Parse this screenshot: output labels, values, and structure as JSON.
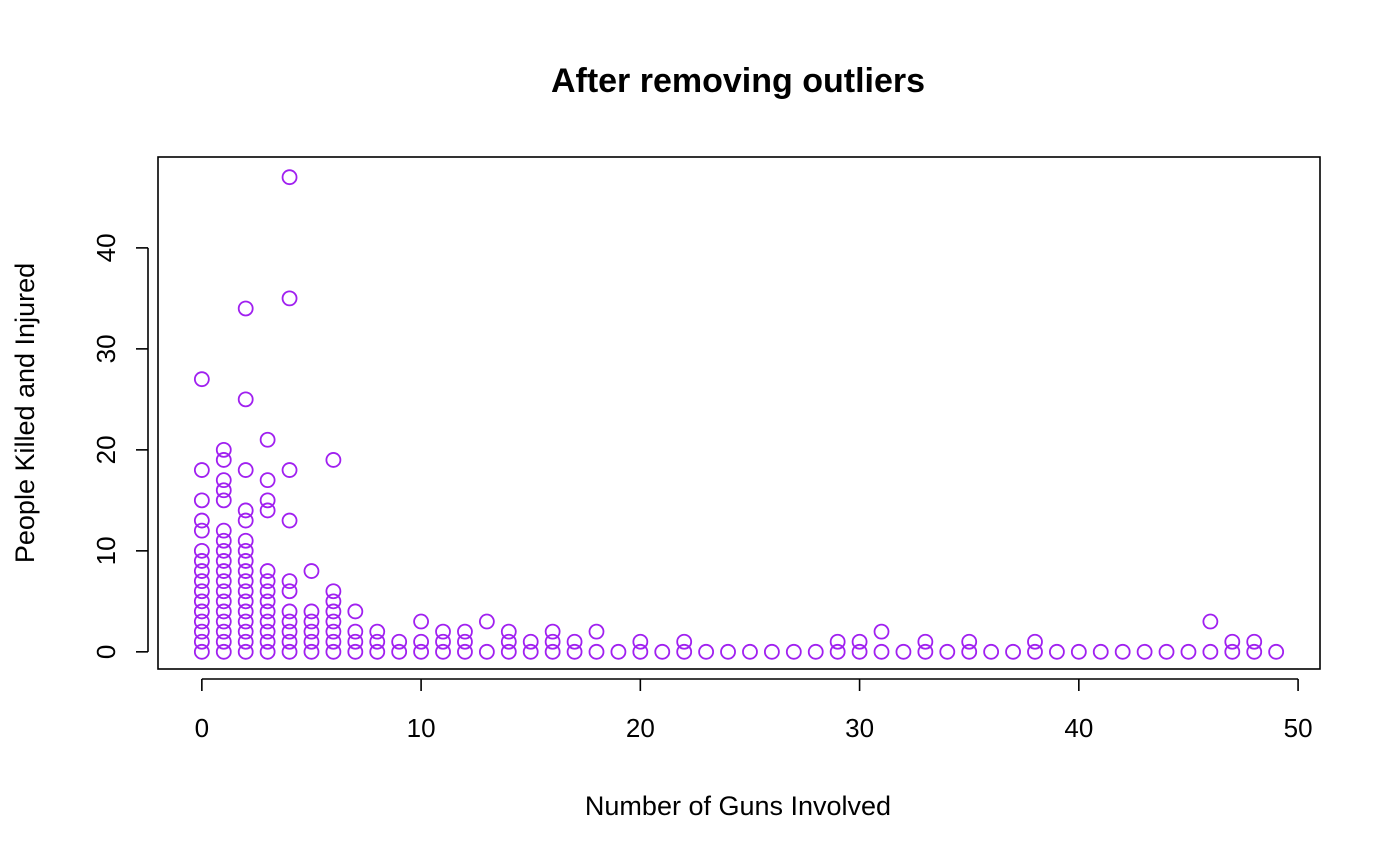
{
  "chart_data": {
    "type": "scatter",
    "title": "After removing outliers",
    "xlabel": "Number of Guns Involved",
    "ylabel": "People Killed and Injured",
    "xlim": [
      -2,
      51
    ],
    "ylim": [
      -1.7,
      49
    ],
    "xticks": [
      0,
      10,
      20,
      30,
      40,
      50
    ],
    "yticks": [
      0,
      10,
      20,
      30,
      40
    ],
    "marker": "open-circle",
    "point_color": "#A020F0",
    "grid": false,
    "legend": "none",
    "points": [
      [
        0,
        0
      ],
      [
        0,
        1
      ],
      [
        0,
        2
      ],
      [
        0,
        3
      ],
      [
        0,
        4
      ],
      [
        0,
        5
      ],
      [
        0,
        6
      ],
      [
        0,
        7
      ],
      [
        0,
        8
      ],
      [
        0,
        9
      ],
      [
        0,
        10
      ],
      [
        0,
        12
      ],
      [
        0,
        13
      ],
      [
        0,
        15
      ],
      [
        0,
        18
      ],
      [
        0,
        27
      ],
      [
        1,
        0
      ],
      [
        1,
        1
      ],
      [
        1,
        2
      ],
      [
        1,
        3
      ],
      [
        1,
        4
      ],
      [
        1,
        5
      ],
      [
        1,
        6
      ],
      [
        1,
        7
      ],
      [
        1,
        8
      ],
      [
        1,
        9
      ],
      [
        1,
        10
      ],
      [
        1,
        11
      ],
      [
        1,
        12
      ],
      [
        1,
        15
      ],
      [
        1,
        16
      ],
      [
        1,
        17
      ],
      [
        1,
        19
      ],
      [
        1,
        20
      ],
      [
        2,
        0
      ],
      [
        2,
        1
      ],
      [
        2,
        2
      ],
      [
        2,
        3
      ],
      [
        2,
        4
      ],
      [
        2,
        5
      ],
      [
        2,
        6
      ],
      [
        2,
        7
      ],
      [
        2,
        8
      ],
      [
        2,
        9
      ],
      [
        2,
        10
      ],
      [
        2,
        11
      ],
      [
        2,
        13
      ],
      [
        2,
        14
      ],
      [
        2,
        18
      ],
      [
        2,
        25
      ],
      [
        2,
        34
      ],
      [
        3,
        0
      ],
      [
        3,
        1
      ],
      [
        3,
        2
      ],
      [
        3,
        3
      ],
      [
        3,
        4
      ],
      [
        3,
        5
      ],
      [
        3,
        6
      ],
      [
        3,
        7
      ],
      [
        3,
        8
      ],
      [
        3,
        14
      ],
      [
        3,
        15
      ],
      [
        3,
        17
      ],
      [
        3,
        21
      ],
      [
        4,
        0
      ],
      [
        4,
        1
      ],
      [
        4,
        2
      ],
      [
        4,
        3
      ],
      [
        4,
        4
      ],
      [
        4,
        6
      ],
      [
        4,
        7
      ],
      [
        4,
        13
      ],
      [
        4,
        18
      ],
      [
        4,
        35
      ],
      [
        4,
        47
      ],
      [
        5,
        0
      ],
      [
        5,
        1
      ],
      [
        5,
        2
      ],
      [
        5,
        3
      ],
      [
        5,
        4
      ],
      [
        5,
        8
      ],
      [
        6,
        0
      ],
      [
        6,
        1
      ],
      [
        6,
        2
      ],
      [
        6,
        3
      ],
      [
        6,
        4
      ],
      [
        6,
        5
      ],
      [
        6,
        6
      ],
      [
        6,
        19
      ],
      [
        7,
        0
      ],
      [
        7,
        1
      ],
      [
        7,
        2
      ],
      [
        7,
        4
      ],
      [
        8,
        0
      ],
      [
        8,
        1
      ],
      [
        8,
        2
      ],
      [
        9,
        0
      ],
      [
        9,
        1
      ],
      [
        10,
        0
      ],
      [
        10,
        1
      ],
      [
        10,
        3
      ],
      [
        11,
        0
      ],
      [
        11,
        1
      ],
      [
        11,
        2
      ],
      [
        12,
        0
      ],
      [
        12,
        1
      ],
      [
        12,
        2
      ],
      [
        13,
        0
      ],
      [
        13,
        3
      ],
      [
        14,
        0
      ],
      [
        14,
        1
      ],
      [
        14,
        2
      ],
      [
        15,
        0
      ],
      [
        15,
        1
      ],
      [
        16,
        0
      ],
      [
        16,
        1
      ],
      [
        16,
        2
      ],
      [
        17,
        0
      ],
      [
        17,
        1
      ],
      [
        18,
        0
      ],
      [
        18,
        2
      ],
      [
        19,
        0
      ],
      [
        20,
        0
      ],
      [
        20,
        1
      ],
      [
        21,
        0
      ],
      [
        22,
        0
      ],
      [
        22,
        1
      ],
      [
        23,
        0
      ],
      [
        24,
        0
      ],
      [
        25,
        0
      ],
      [
        26,
        0
      ],
      [
        27,
        0
      ],
      [
        28,
        0
      ],
      [
        29,
        0
      ],
      [
        29,
        1
      ],
      [
        30,
        0
      ],
      [
        30,
        1
      ],
      [
        31,
        0
      ],
      [
        31,
        2
      ],
      [
        32,
        0
      ],
      [
        33,
        0
      ],
      [
        33,
        1
      ],
      [
        34,
        0
      ],
      [
        35,
        0
      ],
      [
        35,
        1
      ],
      [
        36,
        0
      ],
      [
        37,
        0
      ],
      [
        38,
        0
      ],
      [
        38,
        1
      ],
      [
        39,
        0
      ],
      [
        40,
        0
      ],
      [
        41,
        0
      ],
      [
        42,
        0
      ],
      [
        43,
        0
      ],
      [
        44,
        0
      ],
      [
        45,
        0
      ],
      [
        46,
        0
      ],
      [
        46,
        3
      ],
      [
        47,
        0
      ],
      [
        47,
        1
      ],
      [
        48,
        0
      ],
      [
        48,
        1
      ],
      [
        49,
        0
      ]
    ]
  }
}
